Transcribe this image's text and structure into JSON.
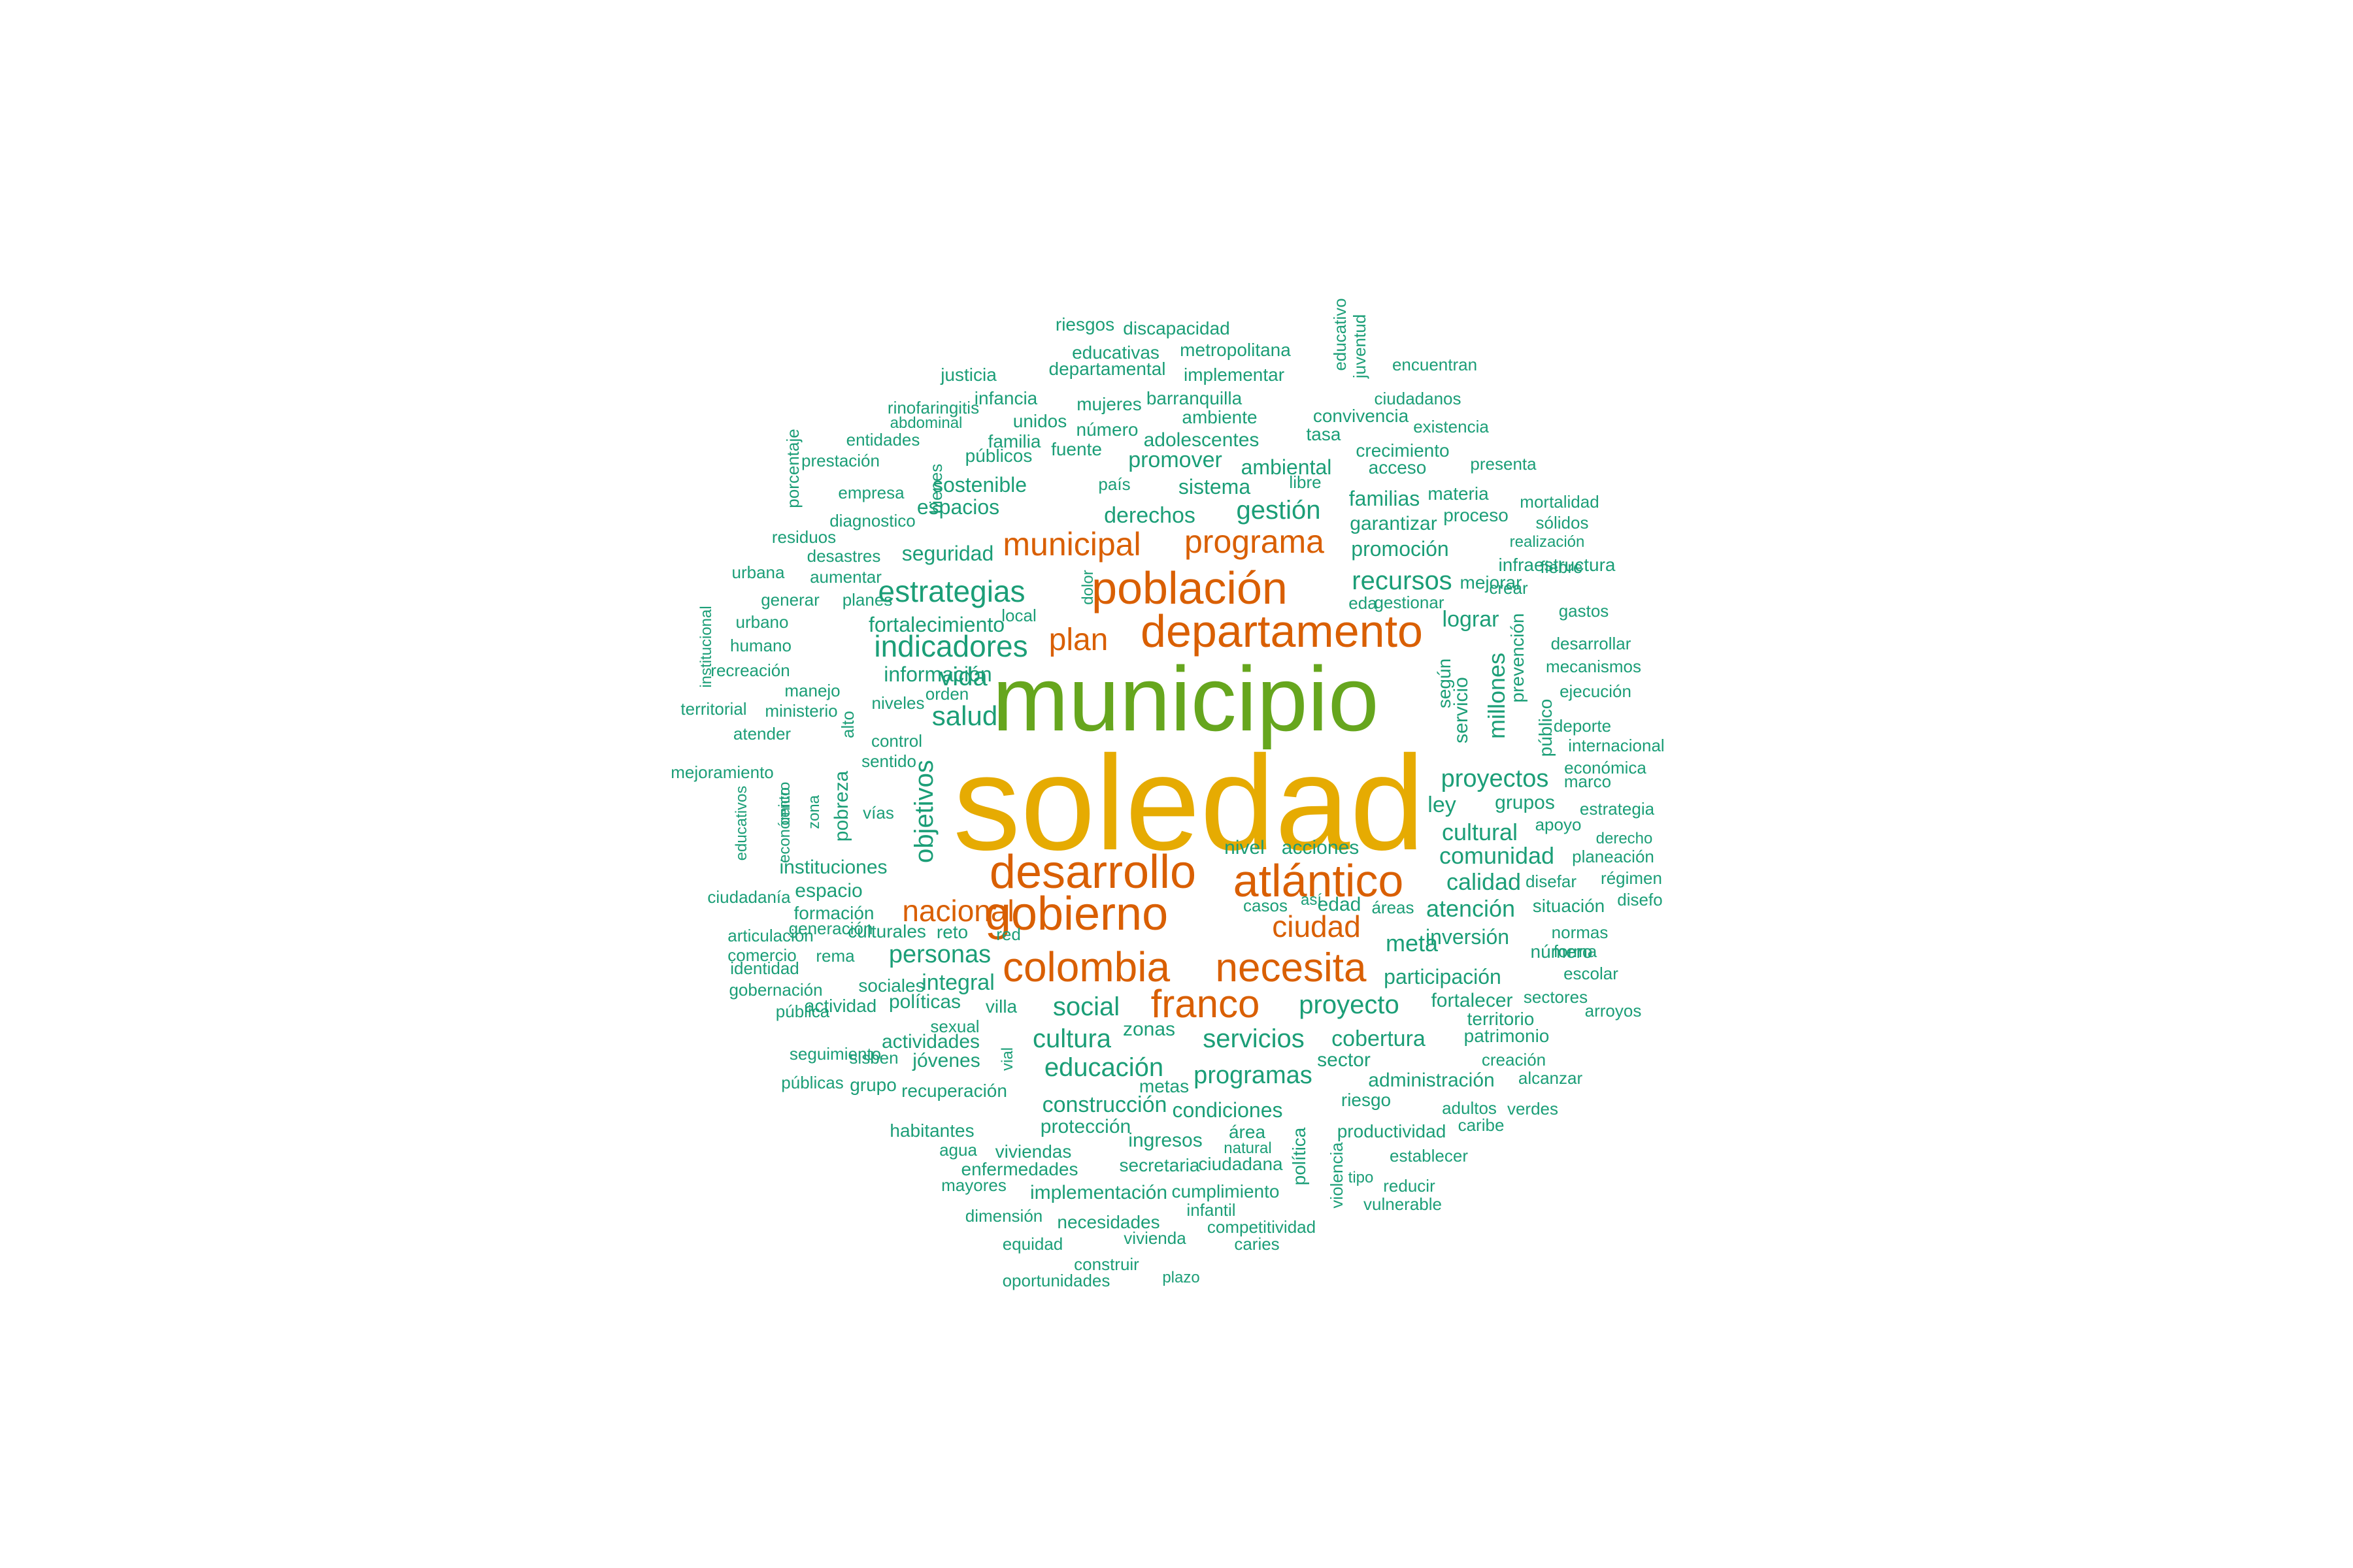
{
  "colors": {
    "tier1": "#E6AB02",
    "tier2": "#66A61E",
    "tier3": "#D95F02",
    "tier4": "#1B9E77"
  },
  "words": [
    {
      "text": "soledad",
      "tier": 1
    },
    {
      "text": "municipio",
      "tier": 2
    },
    {
      "text": "población",
      "tier": 3
    },
    {
      "text": "departamento",
      "tier": 3
    },
    {
      "text": "desarrollo",
      "tier": 3
    },
    {
      "text": "atlántico",
      "tier": 3
    },
    {
      "text": "gobierno",
      "tier": 3
    },
    {
      "text": "colombia",
      "tier": 3
    },
    {
      "text": "necesita",
      "tier": 3
    },
    {
      "text": "franco",
      "tier": 3
    },
    {
      "text": "programa",
      "tier": 3
    },
    {
      "text": "municipal",
      "tier": 3
    },
    {
      "text": "plan",
      "tier": 3
    },
    {
      "text": "nacional",
      "tier": 3
    },
    {
      "text": "ciudad",
      "tier": 3
    },
    {
      "text": "estrategias",
      "tier": 4
    },
    {
      "text": "indicadores",
      "tier": 4
    },
    {
      "text": "salud",
      "tier": 4
    },
    {
      "text": "vida",
      "tier": 4
    },
    {
      "text": "objetivos",
      "tier": 4
    },
    {
      "text": "gestión",
      "tier": 4
    },
    {
      "text": "recursos",
      "tier": 4
    },
    {
      "text": "proyectos",
      "tier": 4
    },
    {
      "text": "cultural",
      "tier": 4
    },
    {
      "text": "comunidad",
      "tier": 4
    },
    {
      "text": "calidad",
      "tier": 4
    },
    {
      "text": "atención",
      "tier": 4
    },
    {
      "text": "meta",
      "tier": 4
    },
    {
      "text": "personas",
      "tier": 4
    },
    {
      "text": "social",
      "tier": 4
    },
    {
      "text": "proyecto",
      "tier": 4
    },
    {
      "text": "cultura",
      "tier": 4
    },
    {
      "text": "servicios",
      "tier": 4
    },
    {
      "text": "cobertura",
      "tier": 4
    },
    {
      "text": "educación",
      "tier": 4
    },
    {
      "text": "programas",
      "tier": 4
    },
    {
      "text": "millones",
      "tier": 4
    },
    {
      "text": "integral",
      "tier": 4
    },
    {
      "text": "seguridad",
      "tier": 4
    },
    {
      "text": "espacios",
      "tier": 4
    },
    {
      "text": "sostenible",
      "tier": 4
    },
    {
      "text": "sistema",
      "tier": 4
    },
    {
      "text": "promover",
      "tier": 4
    },
    {
      "text": "derechos",
      "tier": 4
    },
    {
      "text": "fortalecimiento",
      "tier": 4
    },
    {
      "text": "información",
      "tier": 4
    },
    {
      "text": "construcción",
      "tier": 4
    },
    {
      "text": "condiciones",
      "tier": 4
    },
    {
      "text": "participación",
      "tier": 4
    },
    {
      "text": "inversión",
      "tier": 4
    },
    {
      "text": "ley",
      "tier": 4
    },
    {
      "text": "grupos",
      "tier": 4
    },
    {
      "text": "lograr",
      "tier": 4
    },
    {
      "text": "garantizar",
      "tier": 4
    },
    {
      "text": "promoción",
      "tier": 4
    },
    {
      "text": "familias",
      "tier": 4
    },
    {
      "text": "ambiental",
      "tier": 4
    },
    {
      "text": "adolescentes",
      "tier": 4
    },
    {
      "text": "instituciones",
      "tier": 4
    },
    {
      "text": "espacio",
      "tier": 4
    },
    {
      "text": "zonas",
      "tier": 4
    },
    {
      "text": "acciones",
      "tier": 4
    },
    {
      "text": "nivel",
      "tier": 4
    },
    {
      "text": "edad",
      "tier": 4
    },
    {
      "text": "fortalecer",
      "tier": 4
    },
    {
      "text": "sector",
      "tier": 4
    },
    {
      "text": "administración",
      "tier": 4
    },
    {
      "text": "ingresos",
      "tier": 4
    },
    {
      "text": "área",
      "tier": 4
    },
    {
      "text": "protección",
      "tier": 4
    },
    {
      "text": "implementación",
      "tier": 4
    },
    {
      "text": "cumplimiento",
      "tier": 4
    },
    {
      "text": "riesgo",
      "tier": 4
    },
    {
      "text": "productividad",
      "tier": 4
    },
    {
      "text": "actividades",
      "tier": 4
    },
    {
      "text": "jóvenes",
      "tier": 4
    },
    {
      "text": "políticas",
      "tier": 4
    },
    {
      "text": "sociales",
      "tier": 4
    },
    {
      "text": "culturales",
      "tier": 4
    },
    {
      "text": "formación",
      "tier": 4
    },
    {
      "text": "reto",
      "tier": 4
    },
    {
      "text": "villa",
      "tier": 4
    },
    {
      "text": "pobreza",
      "tier": 4
    },
    {
      "text": "según",
      "tier": 4
    },
    {
      "text": "servicio",
      "tier": 4
    },
    {
      "text": "prevención",
      "tier": 4
    },
    {
      "text": "público",
      "tier": 4
    },
    {
      "text": "situación",
      "tier": 4
    },
    {
      "text": "número",
      "tier": 4
    },
    {
      "text": "territorio",
      "tier": 4
    },
    {
      "text": "patrimonio",
      "tier": 4
    },
    {
      "text": "mejorar",
      "tier": 4
    },
    {
      "text": "infraestructura",
      "tier": 4
    },
    {
      "text": "proceso",
      "tier": 4
    },
    {
      "text": "materia",
      "tier": 4
    },
    {
      "text": "acceso",
      "tier": 4
    },
    {
      "text": "crecimiento",
      "tier": 4
    },
    {
      "text": "tasa",
      "tier": 4
    },
    {
      "text": "convivencia",
      "tier": 4
    },
    {
      "text": "ambiente",
      "tier": 4
    },
    {
      "text": "barranquilla",
      "tier": 4
    },
    {
      "text": "mujeres",
      "tier": 4
    },
    {
      "text": "número",
      "tier": 4
    },
    {
      "text": "fuente",
      "tier": 4
    },
    {
      "text": "unidos",
      "tier": 4
    },
    {
      "text": "familia",
      "tier": 4
    },
    {
      "text": "públicos",
      "tier": 4
    },
    {
      "text": "infancia",
      "tier": 4
    },
    {
      "text": "implementar",
      "tier": 4
    },
    {
      "text": "departamental",
      "tier": 4
    },
    {
      "text": "metropolitana",
      "tier": 4
    },
    {
      "text": "educativas",
      "tier": 4
    },
    {
      "text": "discapacidad",
      "tier": 4
    },
    {
      "text": "riesgos",
      "tier": 4
    },
    {
      "text": "justicia",
      "tier": 4
    },
    {
      "text": "educativo",
      "tier": 4
    },
    {
      "text": "juventud",
      "tier": 4
    },
    {
      "text": "encuentran",
      "tier": 4
    },
    {
      "text": "ciudadanos",
      "tier": 4
    },
    {
      "text": "existencia",
      "tier": 4
    },
    {
      "text": "presenta",
      "tier": 4
    },
    {
      "text": "mortalidad",
      "tier": 4
    },
    {
      "text": "sólidos",
      "tier": 4
    },
    {
      "text": "realización",
      "tier": 4
    },
    {
      "text": "fiebre",
      "tier": 4
    },
    {
      "text": "crear",
      "tier": 4
    },
    {
      "text": "gastos",
      "tier": 4
    },
    {
      "text": "desarrollar",
      "tier": 4
    },
    {
      "text": "mecanismos",
      "tier": 4
    },
    {
      "text": "ejecución",
      "tier": 4
    },
    {
      "text": "deporte",
      "tier": 4
    },
    {
      "text": "internacional",
      "tier": 4
    },
    {
      "text": "económica",
      "tier": 4
    },
    {
      "text": "marco",
      "tier": 4
    },
    {
      "text": "estrategia",
      "tier": 4
    },
    {
      "text": "derecho",
      "tier": 4
    },
    {
      "text": "planeación",
      "tier": 4
    },
    {
      "text": "régimen",
      "tier": 4
    },
    {
      "text": "disefo",
      "tier": 4
    },
    {
      "text": "disefar",
      "tier": 4
    },
    {
      "text": "apoyo",
      "tier": 4
    },
    {
      "text": "normas",
      "tier": 4
    },
    {
      "text": "forma",
      "tier": 4
    },
    {
      "text": "escolar",
      "tier": 4
    },
    {
      "text": "sectores",
      "tier": 4
    },
    {
      "text": "arroyos",
      "tier": 4
    },
    {
      "text": "creación",
      "tier": 4
    },
    {
      "text": "alcanzar",
      "tier": 4
    },
    {
      "text": "adultos",
      "tier": 4
    },
    {
      "text": "verdes",
      "tier": 4
    },
    {
      "text": "caribe",
      "tier": 4
    },
    {
      "text": "establecer",
      "tier": 4
    },
    {
      "text": "reducir",
      "tier": 4
    },
    {
      "text": "vulnerable",
      "tier": 4
    },
    {
      "text": "tipo",
      "tier": 4
    },
    {
      "text": "violencia",
      "tier": 4
    },
    {
      "text": "política",
      "tier": 4
    },
    {
      "text": "ciudadana",
      "tier": 4
    },
    {
      "text": "secretaria",
      "tier": 4
    },
    {
      "text": "natural",
      "tier": 4
    },
    {
      "text": "infantil",
      "tier": 4
    },
    {
      "text": "competitividad",
      "tier": 4
    },
    {
      "text": "caries",
      "tier": 4
    },
    {
      "text": "vivienda",
      "tier": 4
    },
    {
      "text": "necesidades",
      "tier": 4
    },
    {
      "text": "equidad",
      "tier": 4
    },
    {
      "text": "construir",
      "tier": 4
    },
    {
      "text": "oportunidades",
      "tier": 4
    },
    {
      "text": "plazo",
      "tier": 4
    },
    {
      "text": "dimensión",
      "tier": 4
    },
    {
      "text": "mayores",
      "tier": 4
    },
    {
      "text": "enfermedades",
      "tier": 4
    },
    {
      "text": "agua",
      "tier": 4
    },
    {
      "text": "viviendas",
      "tier": 4
    },
    {
      "text": "habitantes",
      "tier": 4
    },
    {
      "text": "recuperación",
      "tier": 4
    },
    {
      "text": "metas",
      "tier": 4
    },
    {
      "text": "vial",
      "tier": 4
    },
    {
      "text": "sexual",
      "tier": 4
    },
    {
      "text": "sisben",
      "tier": 4
    },
    {
      "text": "grupo",
      "tier": 4
    },
    {
      "text": "seguimiento",
      "tier": 4
    },
    {
      "text": "públicas",
      "tier": 4
    },
    {
      "text": "actividad",
      "tier": 4
    },
    {
      "text": "pública",
      "tier": 4
    },
    {
      "text": "gobernación",
      "tier": 4
    },
    {
      "text": "identidad",
      "tier": 4
    },
    {
      "text": "comercio",
      "tier": 4
    },
    {
      "text": "articulación",
      "tier": 4
    },
    {
      "text": "rema",
      "tier": 4
    },
    {
      "text": "generación",
      "tier": 4
    },
    {
      "text": "red",
      "tier": 4
    },
    {
      "text": "casos",
      "tier": 4
    },
    {
      "text": "así",
      "tier": 4
    },
    {
      "text": "áreas",
      "tier": 4
    },
    {
      "text": "ciudadanía",
      "tier": 4
    },
    {
      "text": "educativos",
      "tier": 4
    },
    {
      "text": "económico",
      "tier": 4
    },
    {
      "text": "centro",
      "tier": 4
    },
    {
      "text": "zona",
      "tier": 4
    },
    {
      "text": "vías",
      "tier": 4
    },
    {
      "text": "sentido",
      "tier": 4
    },
    {
      "text": "control",
      "tier": 4
    },
    {
      "text": "alto",
      "tier": 4
    },
    {
      "text": "niveles",
      "tier": 4
    },
    {
      "text": "orden",
      "tier": 4
    },
    {
      "text": "mejoramiento",
      "tier": 4
    },
    {
      "text": "atender",
      "tier": 4
    },
    {
      "text": "territorial",
      "tier": 4
    },
    {
      "text": "ministerio",
      "tier": 4
    },
    {
      "text": "manejo",
      "tier": 4
    },
    {
      "text": "recreación",
      "tier": 4
    },
    {
      "text": "institucional",
      "tier": 4
    },
    {
      "text": "humano",
      "tier": 4
    },
    {
      "text": "urbano",
      "tier": 4
    },
    {
      "text": "generar",
      "tier": 4
    },
    {
      "text": "planes",
      "tier": 4
    },
    {
      "text": "aumentar",
      "tier": 4
    },
    {
      "text": "urbana",
      "tier": 4
    },
    {
      "text": "desastres",
      "tier": 4
    },
    {
      "text": "residuos",
      "tier": 4
    },
    {
      "text": "diagnostico",
      "tier": 4
    },
    {
      "text": "empresa",
      "tier": 4
    },
    {
      "text": "prestación",
      "tier": 4
    },
    {
      "text": "entidades",
      "tier": 4
    },
    {
      "text": "abdominal",
      "tier": 4
    },
    {
      "text": "rinofaringitis",
      "tier": 4
    },
    {
      "text": "porcentaje",
      "tier": 4
    },
    {
      "text": "bienes",
      "tier": 4
    },
    {
      "text": "país",
      "tier": 4
    },
    {
      "text": "libre",
      "tier": 4
    },
    {
      "text": "dolor",
      "tier": 4
    },
    {
      "text": "local",
      "tier": 4
    },
    {
      "text": "eda",
      "tier": 4
    },
    {
      "text": "gestionar",
      "tier": 4
    }
  ]
}
